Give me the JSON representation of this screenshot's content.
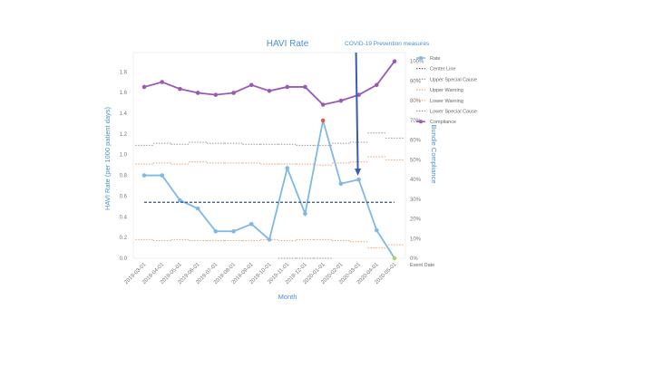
{
  "chart_data": {
    "type": "line",
    "title": "HAVI Rate",
    "annotation": "COVID-19 Prevention measures",
    "xlabel": "Month",
    "ylabel": "HAVI Rate (per 1000 patient days)",
    "y2label": "Bundle Compliance",
    "x_axis_end_label": "Event Date",
    "ylim": [
      0,
      2.0
    ],
    "y2lim": [
      0,
      100
    ],
    "yticks": [
      "0.0",
      "0.2",
      "0.4",
      "0.6",
      "0.8",
      "1.0",
      "1.2",
      "1.4",
      "1.6",
      "1.8"
    ],
    "y2ticks": [
      "0%",
      "10%",
      "20%",
      "30%",
      "40%",
      "50%",
      "60%",
      "70%",
      "80%",
      "90%",
      "100%"
    ],
    "categories": [
      "2019-03-01",
      "2019-04-01",
      "2019-05-01",
      "2019-06-01",
      "2019-07-01",
      "2019-08-01",
      "2019-09-01",
      "2019-10-01",
      "2019-11-01",
      "2019-12-01",
      "2020-01-01",
      "2020-02-01",
      "2020-03-01",
      "2020-04-01",
      "2020-05-01"
    ],
    "annotation_at": "2020-03-01",
    "legend_position": "right",
    "series": [
      {
        "name": "Rate",
        "axis": "left",
        "color": "#7db8e8",
        "style": "line-marker",
        "values": [
          0.8,
          0.8,
          0.56,
          0.48,
          0.26,
          0.26,
          0.33,
          0.18,
          0.87,
          0.43,
          1.33,
          0.72,
          0.76,
          0.27,
          0.0
        ]
      },
      {
        "name": "Center Line",
        "axis": "left",
        "color": "#3a4f7a",
        "style": "dashed",
        "values": [
          0.54,
          0.54,
          0.54,
          0.54,
          0.54,
          0.54,
          0.54,
          0.54,
          0.54,
          0.54,
          0.54,
          0.54,
          0.54,
          0.54,
          0.54
        ]
      },
      {
        "name": "Upper Special Cause",
        "axis": "left",
        "color": "#999999",
        "style": "dotted-step",
        "values": [
          1.09,
          1.11,
          1.1,
          1.12,
          1.11,
          1.11,
          1.1,
          1.1,
          1.1,
          1.09,
          1.09,
          1.11,
          1.12,
          1.21,
          1.16
        ]
      },
      {
        "name": "Upper Warning",
        "axis": "left",
        "color": "#f0a070",
        "style": "dotted-step",
        "values": [
          0.91,
          0.92,
          0.91,
          0.93,
          0.92,
          0.92,
          0.92,
          0.91,
          0.91,
          0.91,
          0.9,
          0.92,
          0.93,
          0.98,
          0.95
        ]
      },
      {
        "name": "Lower Warning",
        "axis": "left",
        "color": "#f0a070",
        "style": "dotted-step",
        "values": [
          0.18,
          0.17,
          0.18,
          0.17,
          0.17,
          0.17,
          0.17,
          0.18,
          0.17,
          0.18,
          0.18,
          0.17,
          0.16,
          0.1,
          0.13
        ]
      },
      {
        "name": "Lower Special Cause",
        "axis": "left",
        "color": "#999999",
        "style": "dotted-step",
        "values": [
          null,
          null,
          null,
          null,
          null,
          null,
          null,
          null,
          0,
          0,
          0,
          null,
          null,
          null,
          null
        ]
      },
      {
        "name": "Compliance",
        "axis": "right",
        "color": "#9b59b6",
        "style": "line-marker",
        "values": [
          87,
          89.5,
          86,
          84,
          83,
          84,
          88,
          85,
          87,
          87,
          78,
          80,
          83,
          88,
          100
        ]
      }
    ],
    "special_points": [
      {
        "category": "2020-01-01",
        "series": "Rate",
        "color": "#e8584a"
      },
      {
        "category": "2020-05-01",
        "series": "Rate",
        "color": "#a8d86a"
      }
    ]
  }
}
